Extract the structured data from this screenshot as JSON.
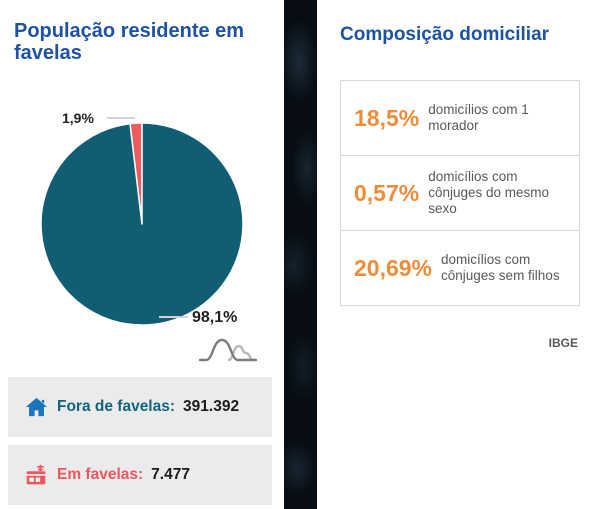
{
  "left_panel": {
    "title": "População residente em favelas",
    "stats": [
      {
        "icon": "home-icon",
        "label": "Fora de favelas:",
        "value": "391.392"
      },
      {
        "icon": "favela-house-icon",
        "label": "Em favelas:",
        "value": "7.477"
      }
    ]
  },
  "right_panel": {
    "title": "Composição domiciliar",
    "items": [
      {
        "percent": "18,5%",
        "description": "domicílios com 1 morador"
      },
      {
        "percent": "0,57%",
        "description": "domicílios com cônjuges do mesmo sexo"
      },
      {
        "percent": "20,69%",
        "description": "domicílios com cônjuges sem filhos"
      }
    ],
    "source": "IBGE"
  },
  "chart_data": {
    "type": "pie",
    "title": "População residente em favelas",
    "slices": [
      {
        "label": "Em favelas",
        "value": 1.9,
        "display": "1,9%",
        "color": "#ee5a5e"
      },
      {
        "label": "Fora de favelas",
        "value": 98.1,
        "display": "98,1%",
        "color": "#115e74"
      }
    ],
    "legend_position": "none",
    "start_angle_deg": -6.84
  },
  "colors": {
    "title_blue": "#1d52a5",
    "pie_teal": "#115e74",
    "pie_red": "#ee5a5e",
    "accent_orange": "#ef8c3a",
    "label_out_teal": "#11647f",
    "label_in_red": "#ee565e",
    "stat_box_gray": "#ebebeb",
    "border_gray": "#d9d9d9",
    "desc_gray": "#57585a",
    "strip_dark": "#070d13"
  }
}
